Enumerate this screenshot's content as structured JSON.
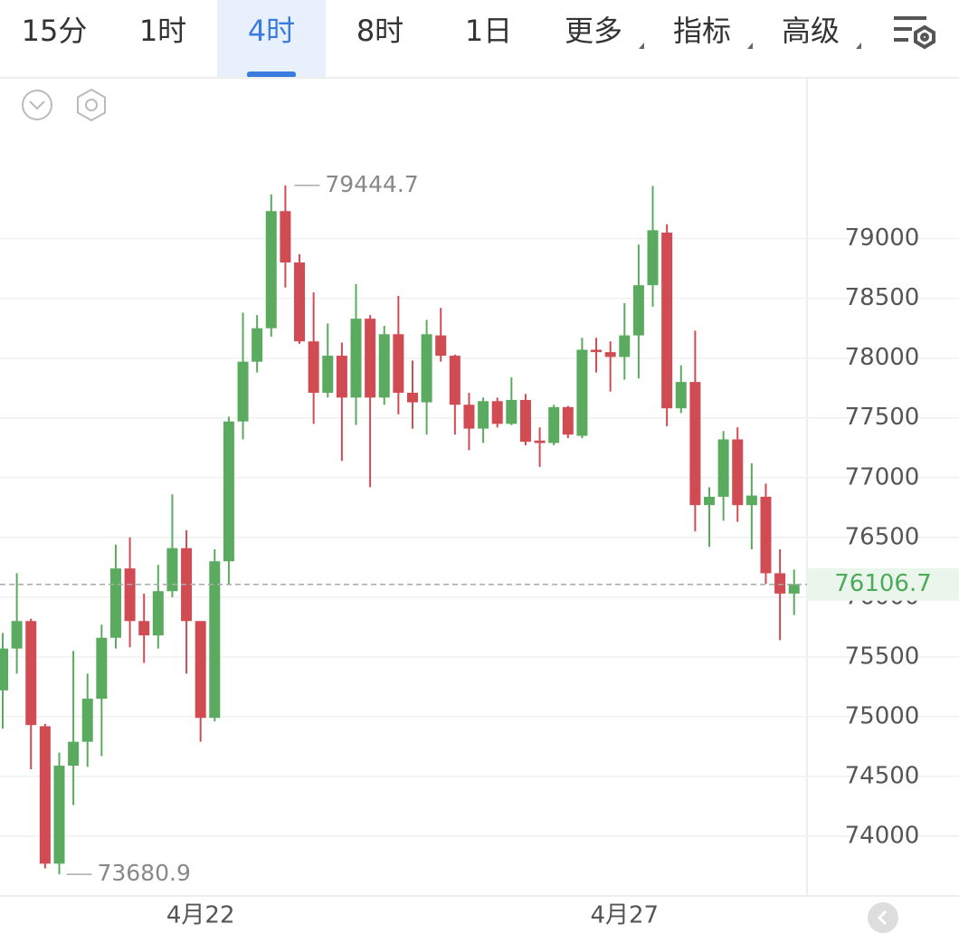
{
  "tabs": [
    "15分",
    "1时",
    "4时",
    "8时",
    "1日",
    "更多",
    "指标",
    "高级"
  ],
  "active_tab": 2,
  "chart_data": {
    "type": "candlestick",
    "categories": [
      null,
      null,
      null,
      null,
      null,
      null,
      null,
      null,
      null,
      null,
      null,
      null,
      null,
      null,
      "4月22",
      null,
      null,
      null,
      null,
      null,
      null,
      null,
      null,
      null,
      null,
      null,
      null,
      null,
      null,
      null,
      null,
      null,
      null,
      null,
      null,
      null,
      null,
      null,
      null,
      null,
      null,
      null,
      null,
      null,
      "4月27",
      null,
      null,
      null,
      null,
      null,
      null,
      null,
      null,
      null,
      null,
      null,
      null
    ],
    "open": [
      75220,
      75570,
      75800,
      74920,
      73770,
      74590,
      74790,
      75150,
      75660,
      76240,
      75800,
      75680,
      76050,
      76410,
      75800,
      74990,
      76300,
      77470,
      77970,
      78250,
      79230,
      78800,
      78140,
      77710,
      78020,
      77670,
      78330,
      77670,
      78200,
      77710,
      77630,
      78190,
      78020,
      77610,
      77410,
      77640,
      77450,
      77650,
      77310,
      77290,
      77590,
      77350,
      78070,
      78050,
      78010,
      78190,
      78610,
      79050,
      77580,
      77800,
      76770,
      76840,
      77320,
      76770,
      76840,
      76200,
      76030
    ],
    "high": [
      75700,
      76200,
      75820,
      74940,
      74700,
      75550,
      75360,
      75770,
      76440,
      76500,
      76030,
      76270,
      76860,
      76560,
      75800,
      76400,
      77510,
      78380,
      78360,
      79370,
      79444.7,
      78870,
      78550,
      78290,
      78130,
      78620,
      78360,
      78270,
      78520,
      77980,
      78320,
      78420,
      78030,
      77710,
      77670,
      77670,
      77840,
      77700,
      77420,
      77610,
      77600,
      78170,
      78170,
      78140,
      78460,
      78950,
      79440,
      79120,
      77940,
      78230,
      76920,
      77390,
      77420,
      77120,
      76950,
      76400,
      76230
    ],
    "low": [
      74900,
      75360,
      74560,
      73730,
      73680.9,
      74260,
      74580,
      74670,
      75570,
      75580,
      75450,
      75570,
      76000,
      75360,
      74790,
      74960,
      76110,
      77320,
      77880,
      78180,
      78590,
      78120,
      77450,
      77670,
      77140,
      77440,
      76920,
      77610,
      77530,
      77410,
      77360,
      77970,
      77360,
      77230,
      77290,
      77420,
      77440,
      77270,
      77090,
      77270,
      77330,
      77330,
      77880,
      77720,
      77820,
      77830,
      78430,
      77430,
      77540,
      76550,
      76420,
      76640,
      76630,
      76400,
      76110,
      75640,
      75850
    ],
    "close": [
      75570,
      75800,
      74930,
      73770,
      74590,
      74790,
      75150,
      75660,
      76240,
      75800,
      75680,
      76050,
      76410,
      75800,
      74990,
      76300,
      77470,
      77970,
      78250,
      79230,
      78800,
      78140,
      77710,
      78020,
      77670,
      78330,
      77670,
      78200,
      77710,
      77630,
      78200,
      78020,
      77610,
      77410,
      77640,
      77450,
      77650,
      77300,
      77290,
      77590,
      77360,
      78070,
      78050,
      78010,
      78190,
      78610,
      79070,
      77580,
      77800,
      76770,
      76840,
      77320,
      76770,
      76850,
      76200,
      76030,
      76106.7
    ],
    "up_color": "#5aab5f",
    "down_color": "#d14b53",
    "ylim": [
      73500,
      80330
    ],
    "yticks": [
      74000,
      74500,
      75000,
      75500,
      76000,
      76500,
      77000,
      77500,
      78000,
      78500,
      79000
    ],
    "grid": true,
    "max_label": 79444.7,
    "min_label": 73680.9,
    "last_price": 76106.7
  }
}
